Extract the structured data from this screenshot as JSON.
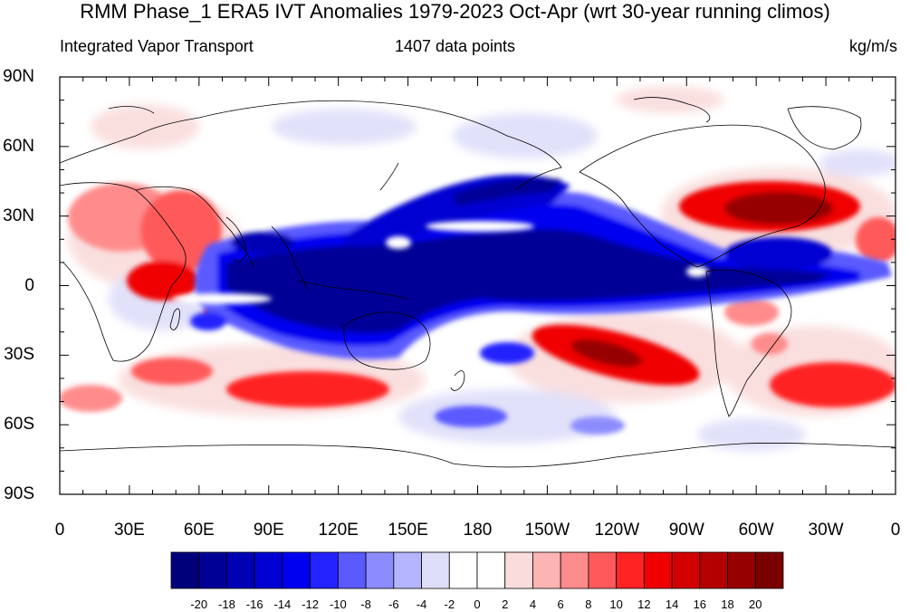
{
  "title": "RMM Phase_1 ERA5 IVT Anomalies 1979-2023 Oct-Apr (wrt 30-year running climos)",
  "subtitle_left": "Integrated Vapor Transport",
  "subtitle_center": "1407 data points",
  "subtitle_right": "kg/m/s",
  "y_ticks": [
    "90N",
    "60N",
    "30N",
    "0",
    "30S",
    "60S",
    "90S"
  ],
  "x_ticks": [
    "0",
    "30E",
    "60E",
    "90E",
    "120E",
    "150E",
    "180",
    "150W",
    "120W",
    "90W",
    "60W",
    "30W",
    "0"
  ],
  "colorbar": {
    "labels": [
      "-20",
      "-18",
      "-16",
      "-14",
      "-12",
      "-10",
      "-8",
      "-6",
      "-4",
      "-2",
      "0",
      "2",
      "4",
      "6",
      "8",
      "10",
      "12",
      "14",
      "16",
      "18",
      "20"
    ],
    "colors": [
      "#00007a",
      "#000096",
      "#0000b4",
      "#0000d2",
      "#0000f0",
      "#2323ff",
      "#5a5aff",
      "#8c8cff",
      "#b4b4ff",
      "#dedefa",
      "#ffffff",
      "#ffffff",
      "#fadcdc",
      "#ffb4b4",
      "#ff8c8c",
      "#ff5a5a",
      "#ff2323",
      "#f00000",
      "#d20000",
      "#b40000",
      "#960000",
      "#7a0000"
    ]
  }
}
